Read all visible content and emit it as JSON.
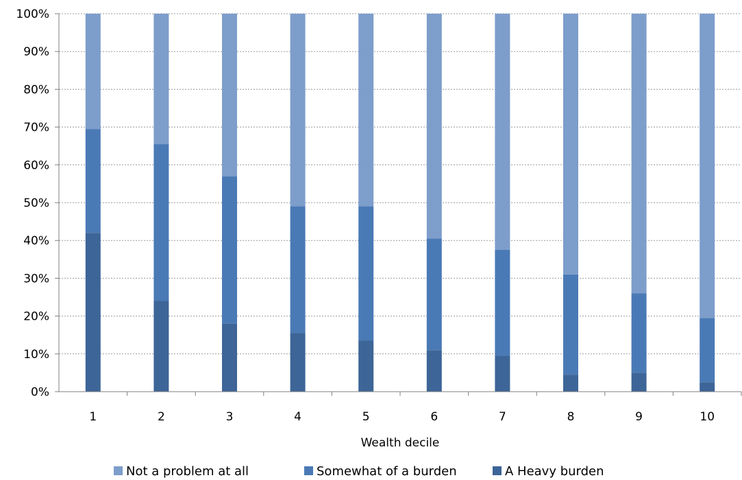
{
  "chart_data": {
    "type": "bar",
    "stacked": true,
    "normalized": true,
    "title": "",
    "xlabel": "Wealth decile",
    "ylabel": "",
    "categories": [
      "1",
      "2",
      "3",
      "4",
      "5",
      "6",
      "7",
      "8",
      "9",
      "10"
    ],
    "y_ticks": [
      "0%",
      "10%",
      "20%",
      "30%",
      "40%",
      "50%",
      "60%",
      "70%",
      "80%",
      "90%",
      "100%"
    ],
    "ylim": [
      0,
      100
    ],
    "grid": true,
    "legend_position": "bottom",
    "series": [
      {
        "name": "A Heavy burden",
        "color": "#3d6597",
        "values": [
          42,
          24,
          18,
          15.5,
          13.5,
          11,
          9.5,
          4.5,
          5,
          2.5
        ]
      },
      {
        "name": "Somewhat of a burden",
        "color": "#4a7ab5",
        "values": [
          27.5,
          41.5,
          39,
          33.5,
          35.5,
          29.5,
          28,
          26.5,
          21,
          17
        ]
      },
      {
        "name": "Not a problem at all",
        "color": "#7d9dcb",
        "values": [
          30.5,
          34.5,
          43,
          51,
          51,
          59.5,
          62.5,
          69,
          74,
          80.5
        ]
      }
    ],
    "legend_order": [
      "Not a problem at all",
      "Somewhat of a burden",
      "A Heavy burden"
    ]
  }
}
